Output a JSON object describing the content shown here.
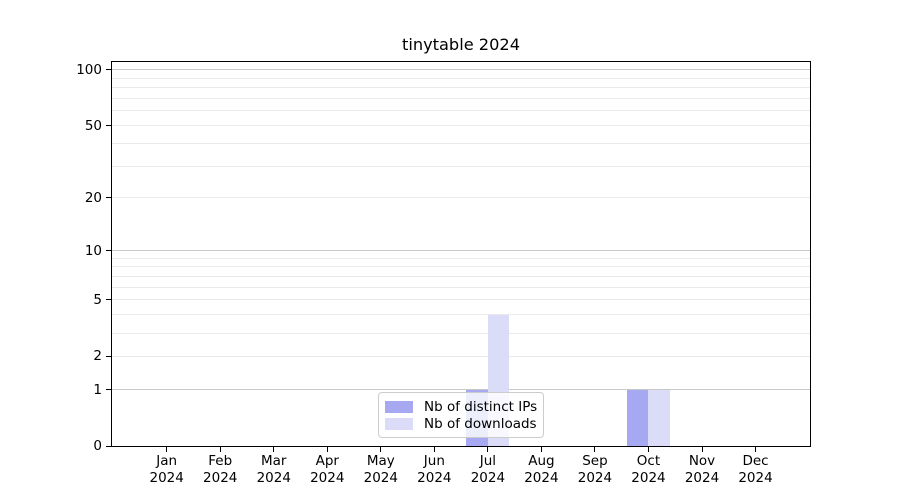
{
  "chart_data": {
    "type": "bar",
    "title": "tinytable 2024",
    "categories": [
      "Jan",
      "Feb",
      "Mar",
      "Apr",
      "May",
      "Jun",
      "Jul",
      "Aug",
      "Sep",
      "Oct",
      "Nov",
      "Dec"
    ],
    "x_year_label": "2024",
    "series": [
      {
        "name": "Nb of distinct IPs",
        "color": "#a6a8f1",
        "values": [
          0,
          0,
          0,
          0,
          0,
          0,
          1,
          0,
          0,
          1,
          0,
          0
        ]
      },
      {
        "name": "Nb of downloads",
        "color": "#dbdcf8",
        "values": [
          0,
          0,
          0,
          0,
          0,
          0,
          4,
          0,
          0,
          1,
          0,
          0
        ]
      }
    ],
    "y_axis": {
      "scale": "log1p",
      "ticks": [
        0,
        1,
        2,
        5,
        10,
        20,
        50,
        100
      ],
      "range": [
        0,
        110
      ]
    },
    "gridlines": {
      "major": [
        1,
        10,
        100
      ],
      "minor": [
        2,
        3,
        4,
        5,
        6,
        7,
        8,
        9,
        20,
        30,
        40,
        50,
        60,
        70,
        80,
        90
      ]
    },
    "legend": {
      "position": "bottom-center"
    },
    "grid": true
  },
  "colors": {
    "bar_distinct_ips": "#a6a8f1",
    "bar_downloads": "#dbdcf8",
    "grid_major": "#c9c9c9",
    "grid_minor": "#e9e9e9",
    "axis": "#000000",
    "legend_border": "#cccccc"
  }
}
